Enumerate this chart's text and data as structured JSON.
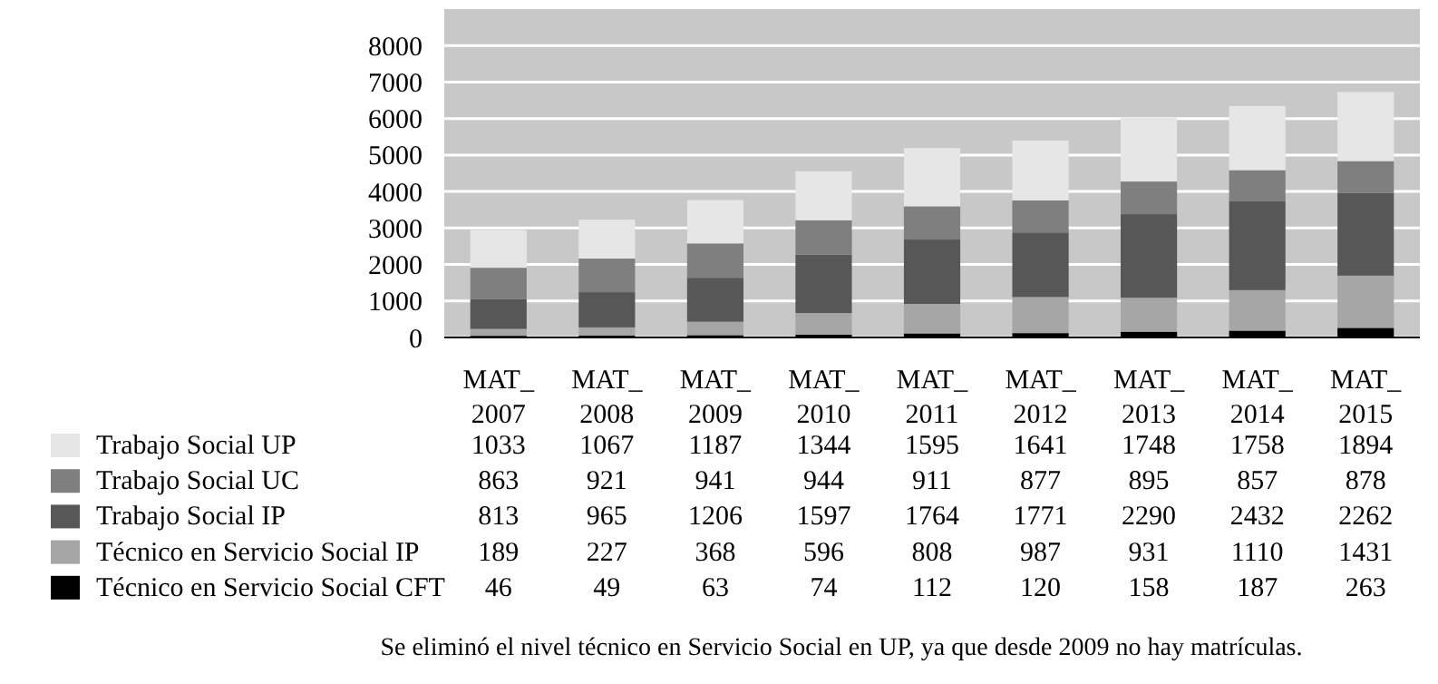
{
  "chart_data": {
    "type": "bar",
    "stacked": true,
    "categories": [
      "MAT_ 2007",
      "MAT_ 2008",
      "MAT_ 2009",
      "MAT_ 2010",
      "MAT_ 2011",
      "MAT_ 2012",
      "MAT_ 2013",
      "MAT_ 2014",
      "MAT_ 2015"
    ],
    "series": [
      {
        "name": "Técnico en Servicio Social CFT",
        "color": "#000000",
        "values": [
          46,
          49,
          63,
          74,
          112,
          120,
          158,
          187,
          263
        ]
      },
      {
        "name": "Técnico en Servicio Social IP",
        "color": "#a6a6a6",
        "values": [
          189,
          227,
          368,
          596,
          808,
          987,
          931,
          1110,
          1431
        ]
      },
      {
        "name": "Trabajo Social IP",
        "color": "#575757",
        "values": [
          813,
          965,
          1206,
          1597,
          1764,
          1771,
          2290,
          2432,
          2262
        ]
      },
      {
        "name": "Trabajo Social UC",
        "color": "#7f7f7f",
        "values": [
          863,
          921,
          941,
          944,
          911,
          877,
          895,
          857,
          878
        ]
      },
      {
        "name": "Trabajo Social UP",
        "color": "#e6e6e6",
        "values": [
          1033,
          1067,
          1187,
          1344,
          1595,
          1641,
          1748,
          1758,
          1894
        ]
      }
    ],
    "ylim": [
      0,
      9000
    ],
    "yticks": [
      0,
      1000,
      2000,
      3000,
      4000,
      5000,
      6000,
      7000,
      8000
    ],
    "grid": "y",
    "legend": "bottom",
    "data_labels": true,
    "annotations": [
      "Se eliminó el nivel técnico en Servicio Social en UP, ya que desde 2009 no hay matrículas."
    ]
  }
}
